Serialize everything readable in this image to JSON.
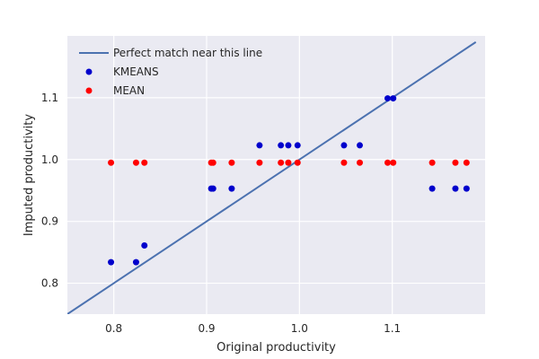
{
  "chart_data": {
    "type": "scatter",
    "title": "",
    "xlabel": "Original productivity",
    "ylabel": "Imputed productivity",
    "xlim": [
      0.75,
      1.2
    ],
    "ylim": [
      0.75,
      1.2
    ],
    "xticks": [
      {
        "value": 0.8,
        "label": "0.8"
      },
      {
        "value": 0.9,
        "label": "0.9"
      },
      {
        "value": 1.0,
        "label": "1.0"
      },
      {
        "value": 1.1,
        "label": "1.1"
      }
    ],
    "yticks": [
      {
        "value": 0.8,
        "label": "0.8"
      },
      {
        "value": 0.9,
        "label": "0.9"
      },
      {
        "value": 1.0,
        "label": "1.0"
      },
      {
        "value": 1.1,
        "label": "1.1"
      }
    ],
    "grid": true,
    "legend_position": "top-left",
    "background_color": "#eaeaf2",
    "line": {
      "name": "Perfect match near this line",
      "color": "#4c72b0",
      "x": [
        0.75,
        1.19
      ],
      "y": [
        0.75,
        1.19
      ]
    },
    "series": [
      {
        "name": "KMEANS",
        "color": "#0000cc",
        "x": [
          0.797,
          0.824,
          0.833,
          0.905,
          0.907,
          0.927,
          0.957,
          0.98,
          0.988,
          0.998,
          1.048,
          1.065,
          1.095,
          1.101,
          1.143,
          1.168,
          1.18
        ],
        "y": [
          0.834,
          0.834,
          0.861,
          0.953,
          0.953,
          0.953,
          1.023,
          1.023,
          1.023,
          1.023,
          1.023,
          1.023,
          1.099,
          1.099,
          0.953,
          0.953,
          0.953
        ]
      },
      {
        "name": "MEAN",
        "color": "#ff0000",
        "x": [
          0.797,
          0.824,
          0.833,
          0.905,
          0.907,
          0.927,
          0.957,
          0.98,
          0.988,
          0.998,
          1.048,
          1.065,
          1.095,
          1.101,
          1.143,
          1.168,
          1.18
        ],
        "y": [
          0.995,
          0.995,
          0.995,
          0.995,
          0.995,
          0.995,
          0.995,
          0.995,
          0.995,
          0.995,
          0.995,
          0.995,
          0.995,
          0.995,
          0.995,
          0.995,
          0.995
        ]
      }
    ]
  }
}
